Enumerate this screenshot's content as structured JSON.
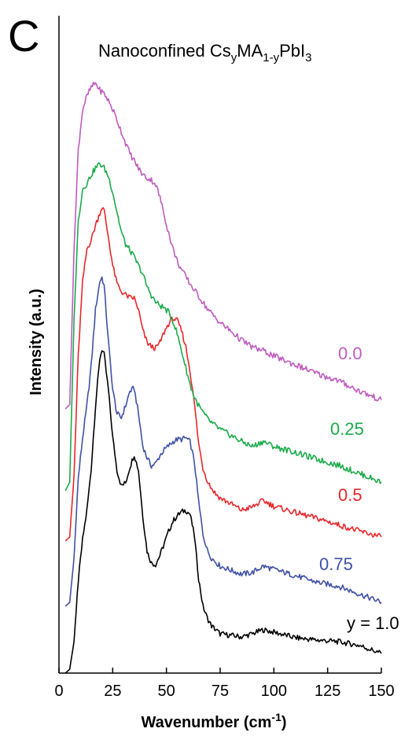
{
  "panel_letter": "C",
  "chart_data": {
    "type": "line",
    "title": {
      "parts": [
        {
          "text": "Nanoconfined Cs",
          "style": "normal"
        },
        {
          "text": "y",
          "style": "sub"
        },
        {
          "text": "MA",
          "style": "normal"
        },
        {
          "text": "1-y",
          "style": "sub"
        },
        {
          "text": "PbI",
          "style": "normal"
        },
        {
          "text": "3",
          "style": "sub"
        }
      ]
    },
    "xlabel": {
      "main": "Wavenumber (cm",
      "sup": "-1",
      "end": ")"
    },
    "ylabel": "Intensity (a.u.)",
    "xlim": [
      0,
      150
    ],
    "xticks": [
      0,
      25,
      50,
      75,
      100,
      125,
      150
    ],
    "y_tick_labels": false,
    "grid": false,
    "legend": "none (series labelled inline at right)",
    "series": [
      {
        "name": "y = 1.0",
        "color": "#000000",
        "x": [
          3,
          5,
          7,
          9,
          11,
          13,
          15,
          17,
          19,
          20,
          21,
          23,
          25,
          27,
          29,
          31,
          33,
          35,
          37,
          39,
          41,
          43,
          45,
          47,
          49,
          51,
          53,
          55,
          57,
          59,
          61,
          63,
          65,
          67,
          69,
          71,
          73,
          75,
          80,
          85,
          90,
          95,
          100,
          110,
          120,
          130,
          140,
          150
        ],
        "y": [
          0,
          5,
          40,
          118,
          170,
          207,
          260,
          340,
          400,
          412,
          405,
          360,
          300,
          258,
          238,
          242,
          262,
          278,
          258,
          200,
          155,
          140,
          138,
          150,
          165,
          180,
          193,
          200,
          205,
          207,
          202,
          175,
          120,
          85,
          70,
          60,
          55,
          50,
          48,
          46,
          50,
          55,
          52,
          45,
          42,
          40,
          35,
          25
        ]
      },
      {
        "name": "0.75",
        "color": "#3f51a5",
        "x": [
          3,
          5,
          7,
          9,
          11,
          13,
          15,
          17,
          19,
          20,
          21,
          23,
          25,
          27,
          29,
          31,
          33,
          35,
          37,
          39,
          41,
          43,
          45,
          47,
          49,
          51,
          53,
          55,
          57,
          59,
          61,
          63,
          65,
          67,
          69,
          71,
          73,
          75,
          80,
          85,
          90,
          95,
          100,
          110,
          120,
          130,
          140,
          150
        ],
        "y": [
          0,
          5,
          60,
          160,
          210,
          250,
          300,
          370,
          405,
          410,
          400,
          330,
          270,
          240,
          235,
          250,
          268,
          272,
          240,
          200,
          185,
          175,
          178,
          188,
          195,
          200,
          205,
          208,
          208,
          210,
          205,
          180,
          130,
          90,
          70,
          60,
          55,
          50,
          45,
          40,
          42,
          50,
          46,
          38,
          30,
          25,
          15,
          5
        ]
      },
      {
        "name": "0.5",
        "color": "#e8262a",
        "x": [
          3,
          5,
          7,
          9,
          11,
          13,
          15,
          17,
          19,
          20,
          21,
          23,
          25,
          27,
          29,
          31,
          33,
          35,
          37,
          39,
          41,
          43,
          45,
          47,
          49,
          51,
          53,
          55,
          57,
          59,
          61,
          63,
          65,
          67,
          69,
          71,
          73,
          75,
          80,
          85,
          90,
          95,
          100,
          110,
          120,
          130,
          140,
          150
        ],
        "y": [
          0,
          5,
          80,
          230,
          320,
          360,
          372,
          390,
          405,
          412,
          408,
          375,
          340,
          318,
          308,
          304,
          300,
          300,
          285,
          260,
          245,
          240,
          238,
          245,
          258,
          268,
          275,
          272,
          260,
          240,
          210,
          170,
          120,
          90,
          75,
          65,
          58,
          53,
          46,
          38,
          42,
          50,
          43,
          35,
          28,
          20,
          12,
          5
        ]
      },
      {
        "name": "0.25",
        "color": "#1aab4a",
        "x": [
          3,
          5,
          7,
          9,
          11,
          13,
          15,
          17,
          19,
          21,
          23,
          25,
          27,
          29,
          31,
          33,
          35,
          37,
          39,
          41,
          43,
          45,
          47,
          49,
          51,
          53,
          55,
          57,
          59,
          61,
          63,
          65,
          67,
          69,
          71,
          73,
          75,
          80,
          85,
          90,
          95,
          100,
          110,
          120,
          130,
          140,
          150
        ],
        "y": [
          0,
          10,
          200,
          318,
          355,
          362,
          372,
          380,
          385,
          380,
          370,
          352,
          328,
          305,
          290,
          283,
          275,
          265,
          255,
          240,
          230,
          222,
          218,
          215,
          210,
          200,
          185,
          165,
          145,
          125,
          110,
          100,
          92,
          85,
          80,
          76,
          72,
          65,
          58,
          52,
          58,
          52,
          45,
          37,
          30,
          20,
          10
        ]
      },
      {
        "name": "0.0",
        "color": "#bf5bbf",
        "x": [
          3,
          5,
          7,
          9,
          11,
          13,
          15,
          17,
          19,
          21,
          23,
          25,
          27,
          29,
          31,
          33,
          35,
          37,
          39,
          41,
          43,
          45,
          47,
          49,
          51,
          53,
          55,
          57,
          59,
          61,
          63,
          65,
          67,
          69,
          71,
          73,
          75,
          80,
          85,
          90,
          95,
          100,
          110,
          120,
          130,
          140,
          150
        ],
        "y": [
          0,
          5,
          180,
          295,
          340,
          355,
          365,
          370,
          362,
          358,
          350,
          340,
          328,
          315,
          302,
          290,
          282,
          273,
          266,
          262,
          260,
          255,
          240,
          220,
          200,
          182,
          168,
          158,
          150,
          142,
          135,
          128,
          121,
          114,
          108,
          103,
          98,
          88,
          78,
          70,
          66,
          60,
          50,
          40,
          32,
          20,
          10
        ]
      }
    ]
  }
}
